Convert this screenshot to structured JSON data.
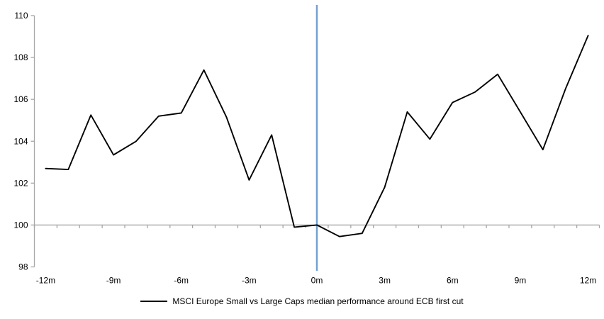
{
  "chart_data": {
    "type": "line",
    "title": "",
    "xlabel": "",
    "ylabel": "",
    "x": [
      -12,
      -11,
      -10,
      -9,
      -8,
      -7,
      -6,
      -5,
      -4,
      -3,
      -2,
      -1,
      0,
      1,
      2,
      3,
      4,
      5,
      6,
      7,
      8,
      9,
      10,
      11,
      12
    ],
    "series": [
      {
        "name": "MSCI Europe Small vs Large Caps median performance around ECB first cut",
        "color": "#000000",
        "values": [
          102.7,
          102.65,
          105.25,
          103.35,
          104.0,
          105.2,
          105.35,
          107.4,
          105.15,
          102.15,
          104.3,
          99.9,
          100.0,
          99.45,
          99.6,
          101.8,
          105.4,
          104.1,
          105.85,
          106.35,
          107.2,
          105.4,
          103.6,
          106.5,
          109.05
        ]
      }
    ],
    "x_tick_positions": [
      -12,
      -9,
      -6,
      -3,
      0,
      3,
      6,
      9,
      12
    ],
    "x_tick_labels": [
      "-12m",
      "-9m",
      "-6m",
      "-3m",
      "0m",
      "3m",
      "6m",
      "9m",
      "12m"
    ],
    "y_tick_values": [
      98,
      100,
      102,
      104,
      106,
      108,
      110
    ],
    "y_tick_labels": [
      "98",
      "100",
      "102",
      "104",
      "106",
      "108",
      "110"
    ],
    "ylim": [
      98,
      110
    ],
    "xlim": [
      -12.5,
      12.5
    ],
    "axis_crosses_at_y": 100,
    "minor_x_tick_every_months": 1,
    "event_line_x": 0,
    "grid": "off",
    "legend_position": "bottom-center",
    "colors": {
      "series_line": "#000000",
      "event_line": "#74A1D2",
      "axis_line": "#A6A6A6",
      "tick_text": "#000000",
      "background": "#FFFFFF"
    }
  }
}
